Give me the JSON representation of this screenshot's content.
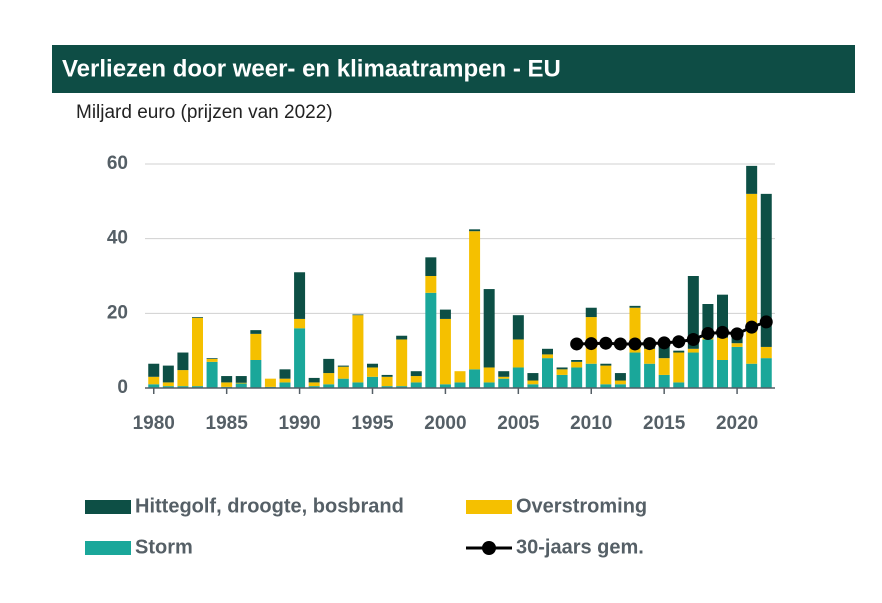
{
  "chart_data": {
    "type": "bar",
    "stacked": true,
    "title": "Verliezen door weer- en klimaatrampen - EU",
    "subtitle": "Miljard euro (prijzen van 2022)",
    "x": [
      1980,
      1981,
      1982,
      1983,
      1984,
      1985,
      1986,
      1987,
      1988,
      1989,
      1990,
      1991,
      1992,
      1993,
      1994,
      1995,
      1996,
      1997,
      1998,
      1999,
      2000,
      2001,
      2002,
      2003,
      2004,
      2005,
      2006,
      2007,
      2008,
      2009,
      2010,
      2011,
      2012,
      2013,
      2014,
      2015,
      2016,
      2017,
      2018,
      2019,
      2020,
      2021,
      2022
    ],
    "xlim": [
      1979.4,
      2022.6
    ],
    "xticks": [
      1980,
      1985,
      1990,
      1995,
      2000,
      2005,
      2010,
      2015,
      2020
    ],
    "ylim": [
      0,
      60
    ],
    "yticks": [
      0,
      20,
      40,
      60
    ],
    "grid": true,
    "series": [
      {
        "name": "Storm",
        "color": "#1aa79a",
        "values": [
          1,
          0.5,
          0.5,
          0.5,
          7,
          0.3,
          1.2,
          7.5,
          0.3,
          1.5,
          16,
          0.5,
          1,
          2.5,
          1.5,
          3,
          0.5,
          0.5,
          1.5,
          25.5,
          1,
          1.5,
          5,
          1.5,
          2.5,
          5.5,
          1,
          8,
          3.5,
          5.5,
          6.5,
          1,
          1,
          9.5,
          6.5,
          3.5,
          1.5,
          9.5,
          13,
          7.5,
          11,
          6.5,
          8
        ]
      },
      {
        "name": "Overstroming",
        "color": "#f5c000",
        "values": [
          2,
          1,
          4.3,
          18.3,
          0.8,
          1.2,
          0.2,
          7,
          2.2,
          1,
          2.5,
          1,
          3,
          3.2,
          18,
          2.5,
          2.5,
          12.5,
          1.7,
          4.5,
          17.5,
          3,
          37,
          4,
          0.5,
          7.5,
          1,
          1,
          1.5,
          1.5,
          12.5,
          5,
          1,
          12,
          4,
          4.5,
          8,
          1,
          0.5,
          6,
          1,
          45.5,
          3
        ]
      },
      {
        "name": "Hittegolf, droogte, bosbrand",
        "color": "#0d4f45",
        "values": [
          3.5,
          4.5,
          4.7,
          0.2,
          0.2,
          1.7,
          1.8,
          1,
          0,
          2.5,
          12.5,
          1.2,
          3.8,
          0.3,
          0.2,
          1,
          0.5,
          1,
          1.3,
          5,
          2.5,
          0,
          0.5,
          21,
          1.5,
          6.5,
          2,
          1.5,
          0.5,
          0.5,
          2.5,
          0.5,
          2,
          0.5,
          0.5,
          4,
          0.5,
          19.5,
          9,
          11.5,
          3,
          7.5,
          41
        ]
      },
      {
        "name": "30-jaars gem.",
        "type": "line",
        "color": "#000000",
        "values": [
          null,
          null,
          null,
          null,
          null,
          null,
          null,
          null,
          null,
          null,
          null,
          null,
          null,
          null,
          null,
          null,
          null,
          null,
          null,
          null,
          null,
          null,
          null,
          null,
          null,
          null,
          null,
          null,
          null,
          11.8,
          11.9,
          12,
          11.8,
          11.8,
          11.9,
          12.1,
          12.4,
          13,
          14.6,
          14.9,
          14.5,
          16.3,
          17.7
        ]
      }
    ]
  }
}
